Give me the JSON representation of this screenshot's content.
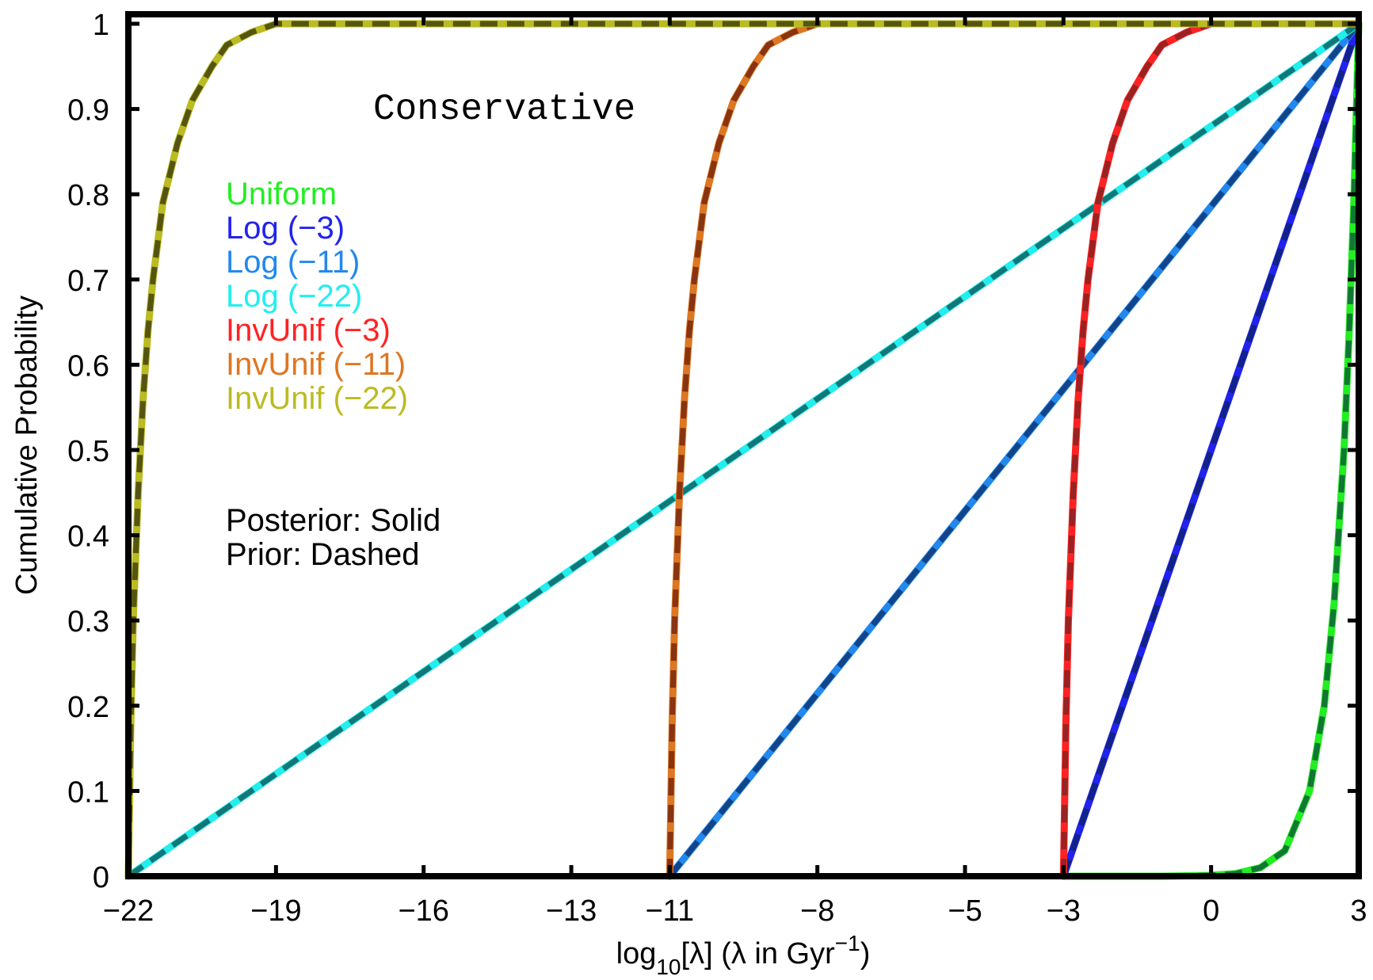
{
  "chart_data": {
    "type": "line",
    "title": "Conservative",
    "xlabel": "log10[λ]  (λ in Gyr−1)",
    "ylabel": "Cumulative Probability",
    "xlim": [
      -22,
      3
    ],
    "ylim": [
      0,
      1
    ],
    "x_ticks": [
      -22,
      -19,
      -16,
      -13,
      -11,
      -8,
      -5,
      -3,
      0,
      3
    ],
    "x_tick_labels": [
      "−22",
      "−19",
      "−16",
      "−13",
      "−11",
      "−8",
      "−5",
      "−3",
      "0",
      "3"
    ],
    "y_ticks": [
      0,
      0.1,
      0.2,
      0.3,
      0.4,
      0.5,
      0.6,
      0.7,
      0.8,
      0.9,
      1
    ],
    "y_tick_labels": [
      "0",
      "0.1",
      "0.2",
      "0.3",
      "0.4",
      "0.5",
      "0.6",
      "0.7",
      "0.8",
      "0.9",
      "1"
    ],
    "grid": false,
    "legend_position": "upper-left",
    "notes": [
      "Posterior: Solid",
      "Prior: Dashed"
    ],
    "series": [
      {
        "name": "Uniform",
        "color": "#22ee22",
        "prior_color": "#117733",
        "x": [
          -3,
          -1,
          0,
          0.5,
          1,
          1.5,
          2,
          2.3,
          2.5,
          2.7,
          2.8,
          2.9,
          3
        ],
        "y": [
          0,
          0,
          0.001,
          0.003,
          0.01,
          0.03,
          0.1,
          0.2,
          0.32,
          0.5,
          0.63,
          0.79,
          1
        ]
      },
      {
        "name": "Log (−3)",
        "color": "#2222ee",
        "prior_color": "#112288",
        "x": [
          -3,
          3
        ],
        "y": [
          0,
          1
        ]
      },
      {
        "name": "Log (−11)",
        "color": "#2288ee",
        "prior_color": "#114488",
        "x": [
          -11,
          3
        ],
        "y": [
          0,
          1
        ]
      },
      {
        "name": "Log (−22)",
        "color": "#22eeee",
        "prior_color": "#117777",
        "x": [
          -22,
          3
        ],
        "y": [
          0,
          1
        ]
      },
      {
        "name": "InvUnif (−3)",
        "color": "#ff2222",
        "prior_color": "#992222",
        "x": [
          -3,
          -2.95,
          -2.9,
          -2.8,
          -2.7,
          -2.6,
          -2.5,
          -2.3,
          -2,
          -1.7,
          -1.3,
          -1,
          -0.5,
          0,
          3
        ],
        "y": [
          0,
          0.18,
          0.3,
          0.45,
          0.56,
          0.64,
          0.7,
          0.79,
          0.86,
          0.91,
          0.95,
          0.975,
          0.99,
          1,
          1
        ]
      },
      {
        "name": "InvUnif (−11)",
        "color": "#dd7722",
        "prior_color": "#883311",
        "x": [
          -11,
          -10.95,
          -10.9,
          -10.8,
          -10.7,
          -10.6,
          -10.5,
          -10.3,
          -10,
          -9.7,
          -9.3,
          -9,
          -8.5,
          -8,
          3
        ],
        "y": [
          0,
          0.18,
          0.3,
          0.45,
          0.56,
          0.64,
          0.7,
          0.79,
          0.86,
          0.91,
          0.95,
          0.975,
          0.99,
          1,
          1
        ]
      },
      {
        "name": "InvUnif (−22)",
        "color": "#bbbb22",
        "prior_color": "#555511",
        "x": [
          -22,
          -21.95,
          -21.9,
          -21.8,
          -21.7,
          -21.6,
          -21.5,
          -21.3,
          -21,
          -20.7,
          -20.3,
          -20,
          -19.5,
          -19,
          3
        ],
        "y": [
          0,
          0.18,
          0.3,
          0.45,
          0.56,
          0.64,
          0.7,
          0.79,
          0.86,
          0.91,
          0.95,
          0.975,
          0.99,
          1,
          1
        ]
      }
    ]
  }
}
